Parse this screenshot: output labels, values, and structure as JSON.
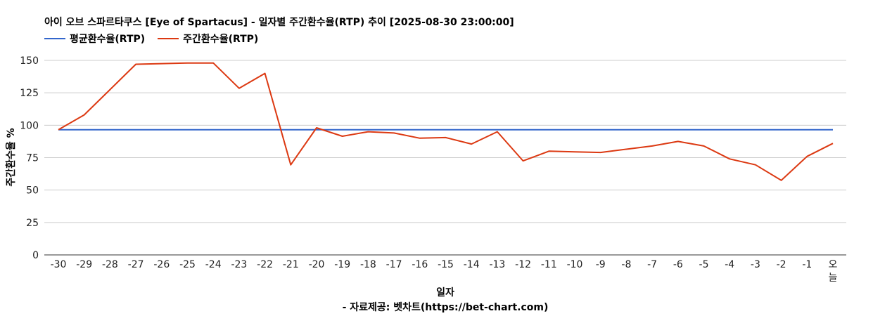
{
  "chart_data": {
    "type": "line",
    "title": "아이 오브 스파르타쿠스 [Eye of Spartacus] - 일자별 주간환수율(RTP) 추이 [2025-08-30 23:00:00]",
    "xlabel": "일자",
    "ylabel": "주간환수율 %",
    "source": "- 자료제공: 벳차트(https://bet-chart.com)",
    "categories": [
      "-30",
      "-29",
      "-28",
      "-27",
      "-26",
      "-25",
      "-24",
      "-23",
      "-22",
      "-21",
      "-20",
      "-19",
      "-18",
      "-17",
      "-16",
      "-15",
      "-14",
      "-13",
      "-12",
      "-11",
      "-10",
      "-9",
      "-8",
      "-7",
      "-6",
      "-5",
      "-4",
      "-3",
      "-2",
      "-1",
      "오늘"
    ],
    "yticks": [
      0,
      25,
      50,
      75,
      100,
      125,
      150
    ],
    "ylim": [
      0,
      150
    ],
    "grid": true,
    "legend_position": "top-left",
    "series": [
      {
        "name": "평균환수율(RTP)",
        "color": "#3366cc",
        "values": [
          96.5,
          96.5,
          96.5,
          96.5,
          96.5,
          96.5,
          96.5,
          96.5,
          96.5,
          96.5,
          96.5,
          96.5,
          96.5,
          96.5,
          96.5,
          96.5,
          96.5,
          96.5,
          96.5,
          96.5,
          96.5,
          96.5,
          96.5,
          96.5,
          96.5,
          96.5,
          96.5,
          96.5,
          96.5,
          96.5,
          96.5
        ]
      },
      {
        "name": "주간환수율(RTP)",
        "color": "#dc3912",
        "values": [
          96.5,
          108,
          127.5,
          147,
          147.5,
          148,
          148,
          128.5,
          140,
          69.5,
          98,
          91.5,
          95,
          94,
          90,
          90.5,
          85.5,
          95,
          72.5,
          80,
          79.5,
          79,
          81.5,
          84,
          87.5,
          84,
          74,
          69.5,
          57.5,
          76,
          86
        ]
      }
    ]
  }
}
